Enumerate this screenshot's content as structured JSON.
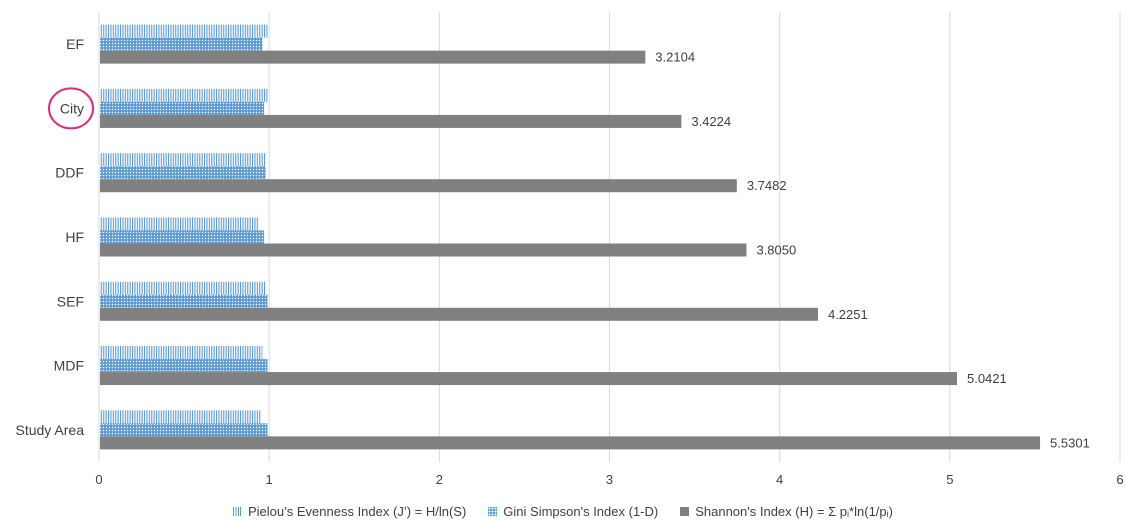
{
  "chart_data": {
    "type": "bar",
    "orientation": "horizontal",
    "categories": [
      "EF",
      "City",
      "DDF",
      "HF",
      "SEF",
      "MDF",
      "Study Area"
    ],
    "highlighted_category": "City",
    "series": [
      {
        "name": "Pielou’s Evenness Index (J’) = H/ln(S)",
        "values": [
          0.99,
          0.99,
          0.98,
          0.94,
          0.98,
          0.96,
          0.95
        ],
        "color": "#5b9bd5",
        "pattern": "vertical-lines"
      },
      {
        "name": "Gini Simpson's Index (1-D)",
        "values": [
          0.96,
          0.97,
          0.98,
          0.97,
          0.99,
          0.99,
          0.99
        ],
        "color": "#5b9bd5",
        "pattern": "dots"
      },
      {
        "name": "Shannon's Index (H) = Σ pᵢ*ln(1/pᵢ)",
        "values": [
          3.2104,
          3.4224,
          3.7482,
          3.805,
          4.2251,
          5.0421,
          5.5301
        ],
        "color": "#808080",
        "pattern": "solid",
        "data_labels": [
          "3.2104",
          "3.4224",
          "3.7482",
          "3.8050",
          "4.2251",
          "5.0421",
          "5.5301"
        ]
      }
    ],
    "xlim": [
      0,
      6
    ],
    "xticks": [
      "0",
      "1",
      "2",
      "3",
      "4",
      "5",
      "6"
    ],
    "grid": true,
    "legend_position": "bottom"
  }
}
